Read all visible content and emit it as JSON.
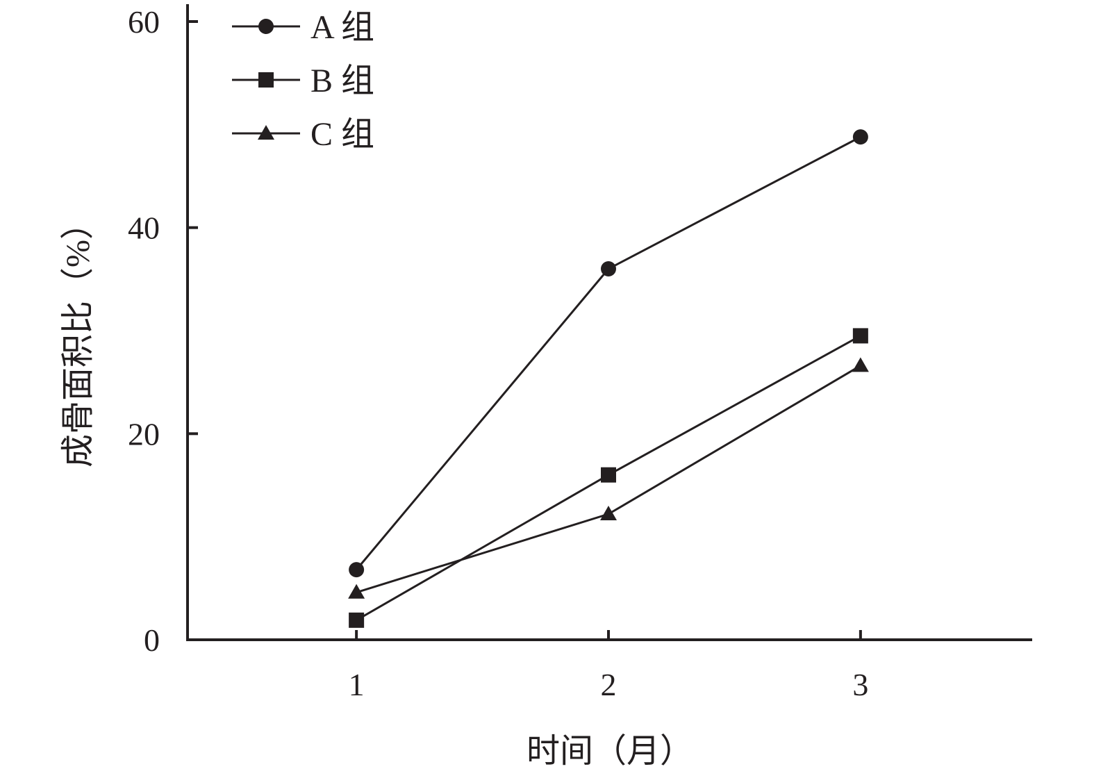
{
  "chart_data": {
    "type": "line",
    "title": "",
    "xlabel": "时间（月）",
    "ylabel": "成骨面积比（%）",
    "x": [
      1,
      2,
      3
    ],
    "x_tick_labels": [
      "1",
      "2",
      "3"
    ],
    "xlim": [
      0.33,
      3.67
    ],
    "ylim": [
      0,
      60
    ],
    "y_ticks": [
      0,
      20,
      40,
      60
    ],
    "y_tick_labels": [
      "0",
      "20",
      "40",
      "60"
    ],
    "grid": false,
    "legend_position": "top-left",
    "series": [
      {
        "name": "A 组",
        "marker": "circle",
        "values": [
          6.8,
          36.0,
          48.8
        ]
      },
      {
        "name": "B 组",
        "marker": "square",
        "values": [
          1.9,
          16.0,
          29.5
        ]
      },
      {
        "name": "C 组",
        "marker": "triangle",
        "values": [
          4.6,
          12.2,
          26.6
        ]
      }
    ],
    "colors": {
      "line": "#231f20",
      "marker": "#231f20",
      "axis": "#231f20"
    }
  }
}
